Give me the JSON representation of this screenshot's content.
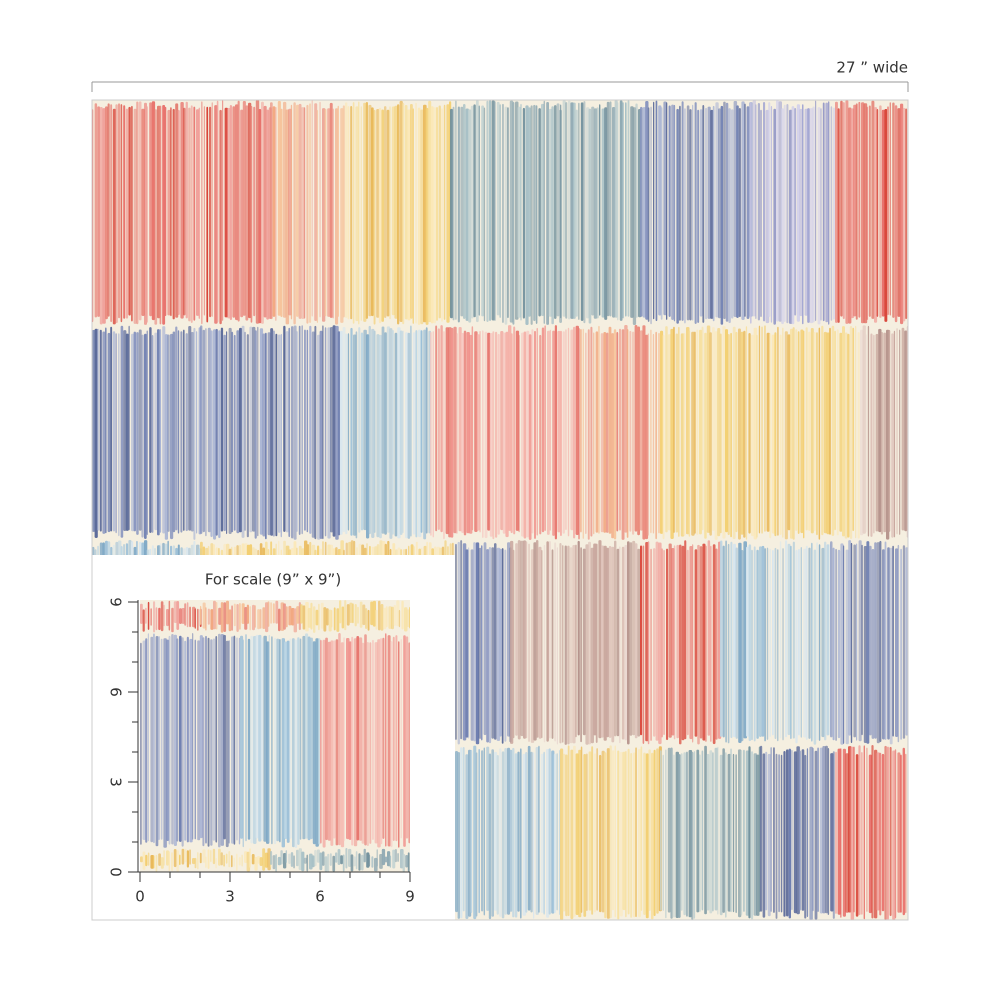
{
  "header": {
    "width_label": "27 ” wide"
  },
  "scale_box": {
    "title": "For scale (9” x 9”)",
    "x_labels": [
      "0",
      "3",
      "6",
      "9"
    ],
    "y_labels": [
      "0",
      "3",
      "6",
      "9"
    ]
  }
}
